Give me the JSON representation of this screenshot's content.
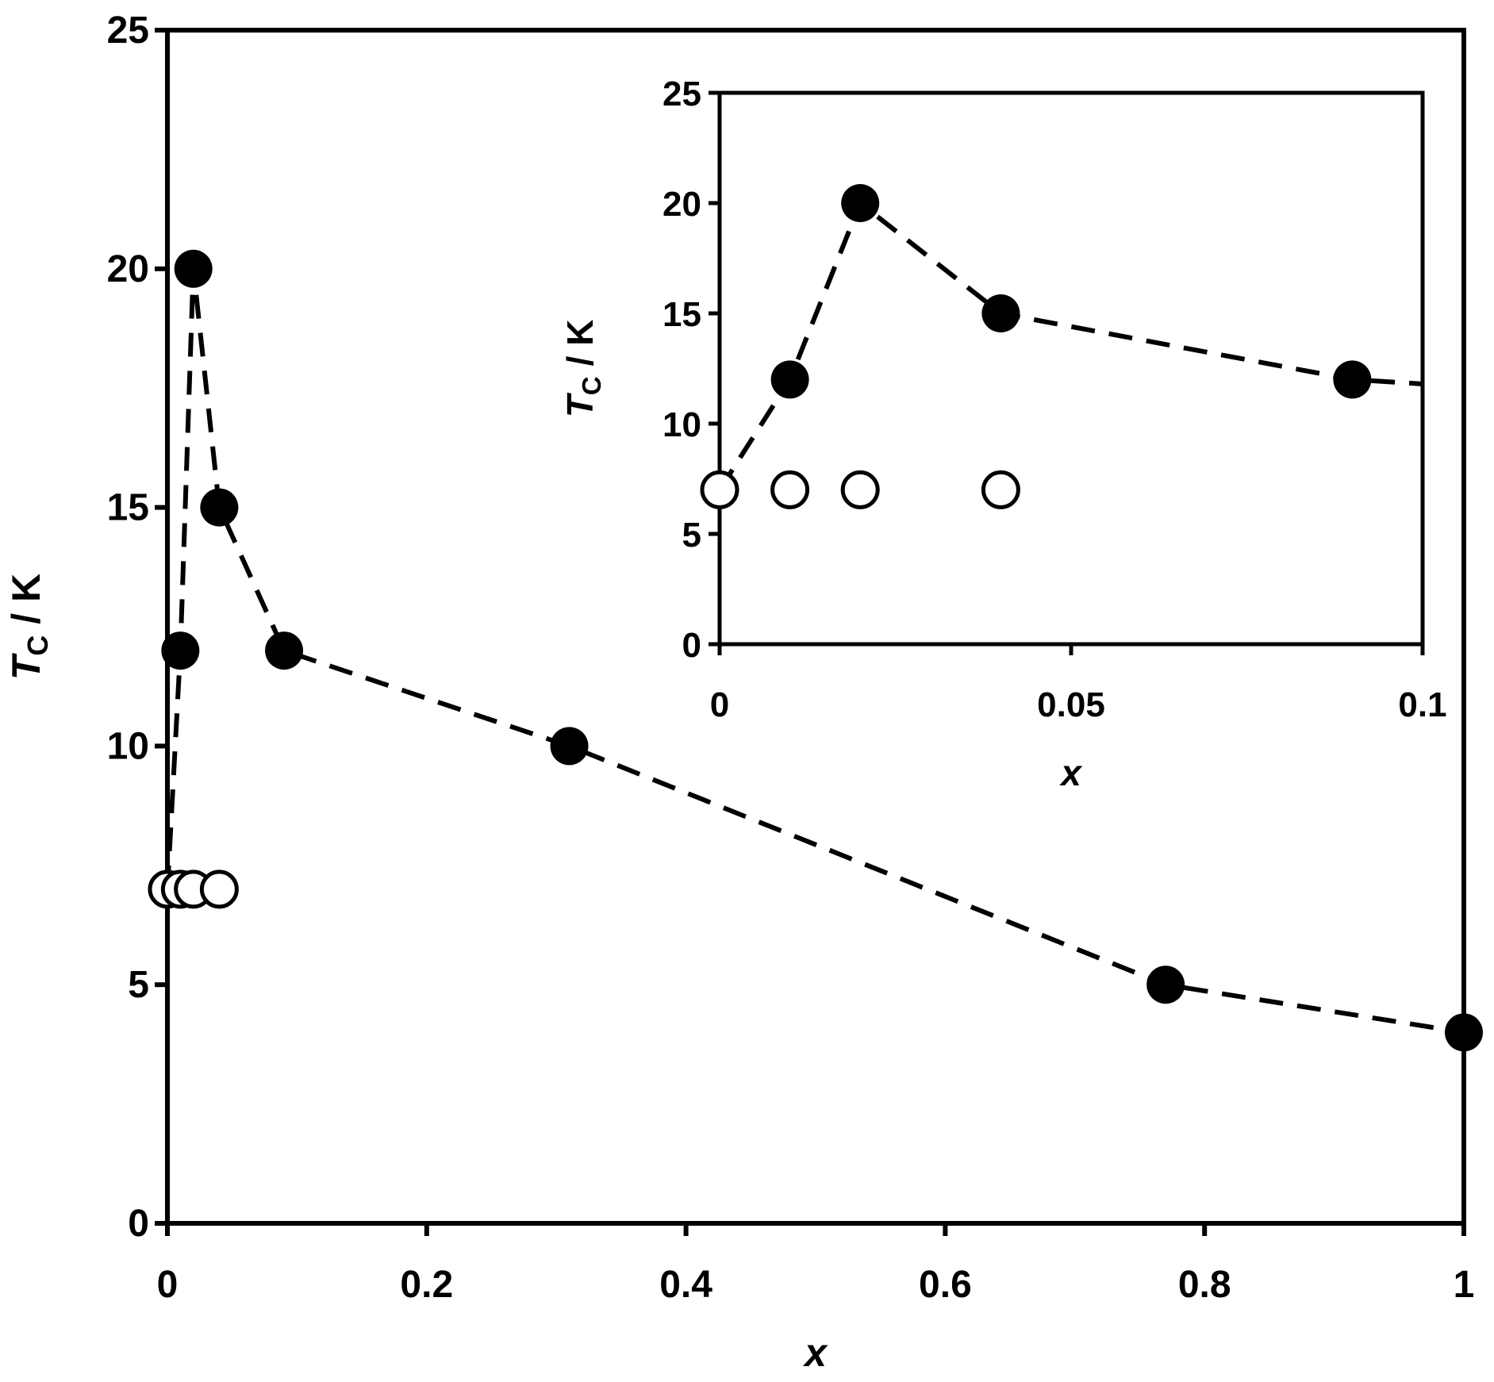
{
  "chart_data": [
    {
      "type": "scatter",
      "title": "",
      "xlabel": "x",
      "ylabel": "TC / K",
      "ylabel_main": "T",
      "ylabel_sub": "C",
      "ylabel_unit": " / K",
      "xlim": [
        0,
        1
      ],
      "ylim": [
        0,
        25
      ],
      "xticks": [
        "0",
        "0.2",
        "0.4",
        "0.6",
        "0.8",
        "1"
      ],
      "yticks": [
        "0",
        "5",
        "10",
        "15",
        "20",
        "25"
      ],
      "grid": false,
      "series": [
        {
          "marker": "filled-circle",
          "line": "dashed",
          "x": [
            0,
            0.01,
            0.02,
            0.04,
            0.09,
            0.31,
            0.77,
            1.0
          ],
          "y": [
            7,
            12,
            20,
            15,
            12,
            10,
            5,
            4
          ],
          "line_starts_at_first_point": true
        },
        {
          "marker": "open-circle",
          "line": "none",
          "x": [
            0,
            0.01,
            0.02,
            0.04
          ],
          "y": [
            7,
            7,
            7,
            7
          ]
        }
      ]
    },
    {
      "type": "scatter",
      "role": "inset",
      "title": "",
      "xlabel": "x",
      "ylabel": "TC / K",
      "ylabel_main": "T",
      "ylabel_sub": "C",
      "ylabel_unit": " / K",
      "xlim": [
        0,
        0.1
      ],
      "ylim": [
        0,
        25
      ],
      "xticks": [
        "0",
        "0.05",
        "0.1"
      ],
      "yticks": [
        "0",
        "5",
        "10",
        "15",
        "20",
        "25"
      ],
      "grid": false,
      "series": [
        {
          "marker": "filled-circle",
          "line": "dashed",
          "x": [
            0,
            0.01,
            0.02,
            0.04,
            0.09,
            0.1
          ],
          "y": [
            7,
            12,
            20,
            15,
            12,
            11.8
          ],
          "markers_on_points": [
            false,
            true,
            true,
            true,
            true,
            false
          ]
        },
        {
          "marker": "open-circle",
          "line": "none",
          "x": [
            0,
            0.01,
            0.02,
            0.04
          ],
          "y": [
            7,
            7,
            7,
            7
          ]
        }
      ]
    }
  ]
}
